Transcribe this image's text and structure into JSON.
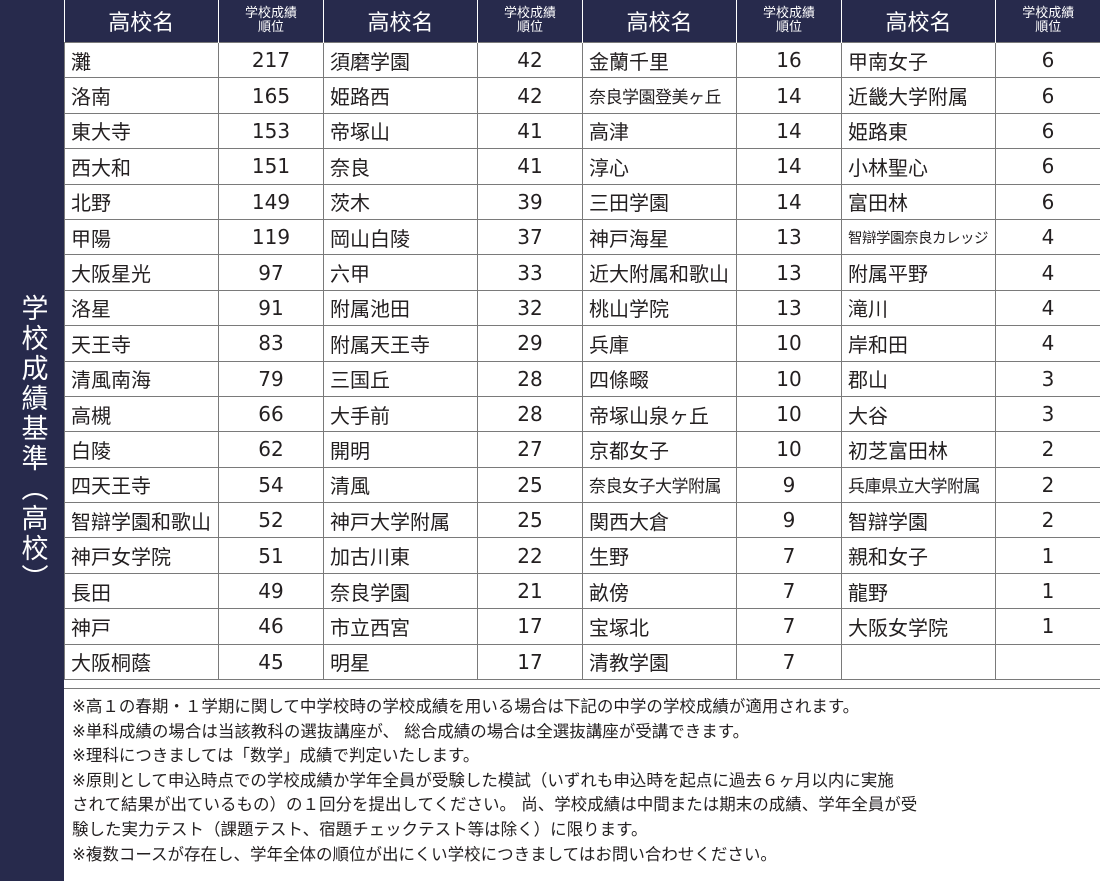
{
  "side_label": "学校成績基準（高校）",
  "headers": {
    "name": "高校名",
    "rank_line1": "学校成績",
    "rank_line2": "順位"
  },
  "rows": [
    [
      [
        "灘",
        "217"
      ],
      [
        "須磨学園",
        "42"
      ],
      [
        "金蘭千里",
        "16"
      ],
      [
        "甲南女子",
        "6"
      ]
    ],
    [
      [
        "洛南",
        "165"
      ],
      [
        "姫路西",
        "42"
      ],
      [
        "奈良学園登美ヶ丘",
        "14"
      ],
      [
        "近畿大学附属",
        "6"
      ]
    ],
    [
      [
        "東大寺",
        "153"
      ],
      [
        "帝塚山",
        "41"
      ],
      [
        "高津",
        "14"
      ],
      [
        "姫路東",
        "6"
      ]
    ],
    [
      [
        "西大和",
        "151"
      ],
      [
        "奈良",
        "41"
      ],
      [
        "淳心",
        "14"
      ],
      [
        "小林聖心",
        "6"
      ]
    ],
    [
      [
        "北野",
        "149"
      ],
      [
        "茨木",
        "39"
      ],
      [
        "三田学園",
        "14"
      ],
      [
        "富田林",
        "6"
      ]
    ],
    [
      [
        "甲陽",
        "119"
      ],
      [
        "岡山白陵",
        "37"
      ],
      [
        "神戸海星",
        "13"
      ],
      [
        "智辯学園奈良カレッジ",
        "4"
      ]
    ],
    [
      [
        "大阪星光",
        "97"
      ],
      [
        "六甲",
        "33"
      ],
      [
        "近大附属和歌山",
        "13"
      ],
      [
        "附属平野",
        "4"
      ]
    ],
    [
      [
        "洛星",
        "91"
      ],
      [
        "附属池田",
        "32"
      ],
      [
        "桃山学院",
        "13"
      ],
      [
        "滝川",
        "4"
      ]
    ],
    [
      [
        "天王寺",
        "83"
      ],
      [
        "附属天王寺",
        "29"
      ],
      [
        "兵庫",
        "10"
      ],
      [
        "岸和田",
        "4"
      ]
    ],
    [
      [
        "清風南海",
        "79"
      ],
      [
        "三国丘",
        "28"
      ],
      [
        "四條畷",
        "10"
      ],
      [
        "郡山",
        "3"
      ]
    ],
    [
      [
        "高槻",
        "66"
      ],
      [
        "大手前",
        "28"
      ],
      [
        "帝塚山泉ヶ丘",
        "10"
      ],
      [
        "大谷",
        "3"
      ]
    ],
    [
      [
        "白陵",
        "62"
      ],
      [
        "開明",
        "27"
      ],
      [
        "京都女子",
        "10"
      ],
      [
        "初芝富田林",
        "2"
      ]
    ],
    [
      [
        "四天王寺",
        "54"
      ],
      [
        "清風",
        "25"
      ],
      [
        "奈良女子大学附属",
        "9"
      ],
      [
        "兵庫県立大学附属",
        "2"
      ]
    ],
    [
      [
        "智辯学園和歌山",
        "52"
      ],
      [
        "神戸大学附属",
        "25"
      ],
      [
        "関西大倉",
        "9"
      ],
      [
        "智辯学園",
        "2"
      ]
    ],
    [
      [
        "神戸女学院",
        "51"
      ],
      [
        "加古川東",
        "22"
      ],
      [
        "生野",
        "7"
      ],
      [
        "親和女子",
        "1"
      ]
    ],
    [
      [
        "長田",
        "49"
      ],
      [
        "奈良学園",
        "21"
      ],
      [
        "畝傍",
        "7"
      ],
      [
        "龍野",
        "1"
      ]
    ],
    [
      [
        "神戸",
        "46"
      ],
      [
        "市立西宮",
        "17"
      ],
      [
        "宝塚北",
        "7"
      ],
      [
        "大阪女学院",
        "1"
      ]
    ],
    [
      [
        "大阪桐蔭",
        "45"
      ],
      [
        "明星",
        "17"
      ],
      [
        "清教学園",
        "7"
      ],
      [
        "",
        ""
      ]
    ]
  ],
  "notes": [
    "※高１の春期・１学期に関して中学校時の学校成績を用いる場合は下記の中学の学校成績が適用されます。",
    "※単科成績の場合は当該教科の選抜講座が、 総合成績の場合は全選抜講座が受講できます。",
    "※理科につきましては「数学」成績で判定いたします。",
    "※原則として申込時点での学校成績か学年全員が受験した模試（いずれも申込時を起点に過去６ヶ月以内に実施",
    "されて結果が出ているもの）の１回分を提出してください。 尚、学校成績は中間または期末の成績、学年全員が受",
    "験した実力テスト（課題テスト、宿題チェックテスト等は除く）に限ります。",
    "※複数コースが存在し、学年全体の順位が出にくい学校につきましてはお問い合わせください。"
  ]
}
